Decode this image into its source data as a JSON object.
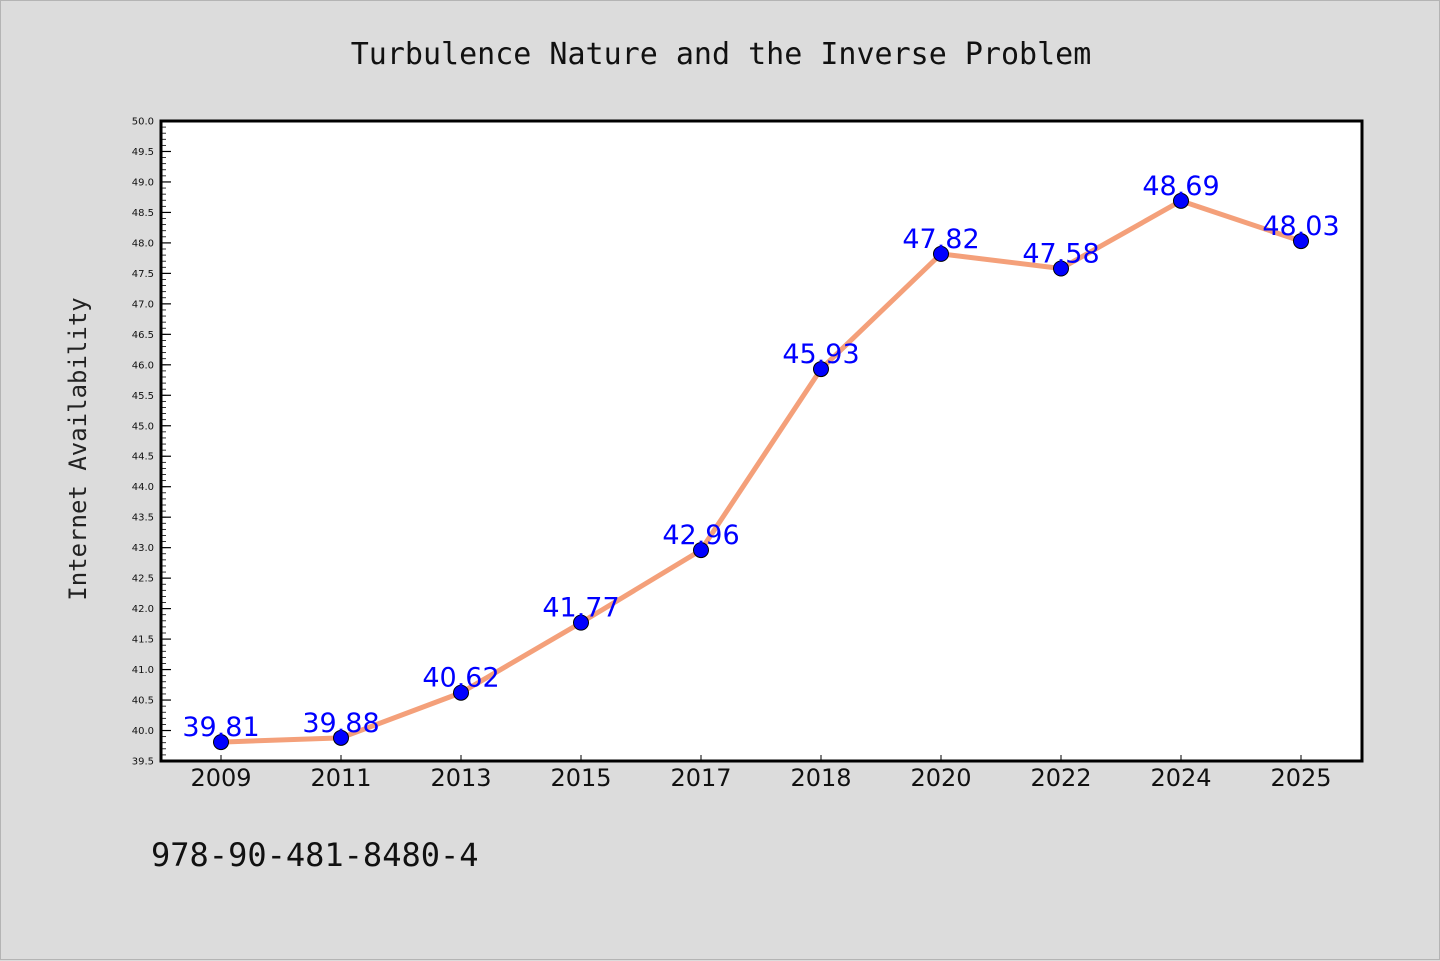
{
  "chart_data": {
    "type": "line",
    "title": "Turbulence Nature and the Inverse Problem",
    "xlabel": "",
    "ylabel": "Internet Availability",
    "categories": [
      "2009",
      "2011",
      "2013",
      "2015",
      "2017",
      "2018",
      "2020",
      "2022",
      "2024",
      "2025"
    ],
    "series": [
      {
        "values": [
          39.81,
          39.88,
          40.62,
          41.77,
          42.96,
          45.93,
          47.82,
          47.58,
          48.69,
          48.03
        ],
        "labels": [
          "39.81",
          "39.88",
          "40.62",
          "41.77",
          "42.96",
          "45.93",
          "47.82",
          "47.58",
          "48.69",
          "48.03"
        ],
        "line_color": "#f4a07a",
        "marker_color": "#0000ff"
      }
    ],
    "ylim": [
      39.5,
      50.0
    ],
    "yticks": [
      "39.5",
      "40.0",
      "40.5",
      "41.0",
      "41.5",
      "42.0",
      "42.5",
      "43.0",
      "43.5",
      "44.0",
      "44.5",
      "45.0",
      "45.5",
      "46.0",
      "46.5",
      "47.0",
      "47.5",
      "48.0",
      "48.5",
      "49.0",
      "49.5",
      "50.0"
    ],
    "grid": false,
    "legend": "none",
    "background": "#dcdcdc",
    "plot_background": "#ffffff"
  },
  "footer": {
    "isbn": "978-90-481-8480-4"
  }
}
